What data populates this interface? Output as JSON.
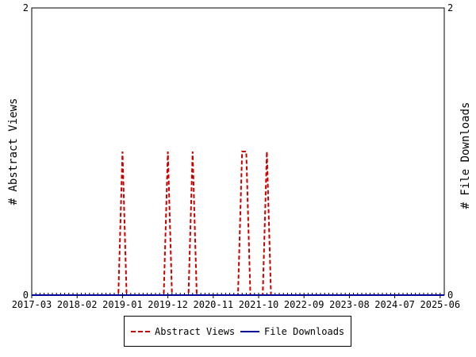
{
  "chart_data": {
    "type": "line",
    "x_tick_labels": [
      "2017-03",
      "2018-02",
      "2019-01",
      "2019-12",
      "2020-11",
      "2021-10",
      "2022-09",
      "2023-08",
      "2024-07",
      "2025-06"
    ],
    "y_left": {
      "label": "# Abstract Views",
      "ticks": [
        "0",
        "2"
      ],
      "ylim": [
        0,
        2
      ]
    },
    "y_right": {
      "label": "# File Downloads",
      "ticks": [
        "0",
        "2"
      ],
      "ylim": [
        0,
        2
      ]
    },
    "xlim": [
      "2017-03",
      "2025-07"
    ],
    "series": [
      {
        "name": "Abstract Views",
        "color": "#cc0000",
        "style": "dashed",
        "axis": "left",
        "points": [
          [
            "2017-03",
            0
          ],
          [
            "2018-12",
            0
          ],
          [
            "2019-01",
            1
          ],
          [
            "2019-02",
            0
          ],
          [
            "2019-11",
            0
          ],
          [
            "2019-12",
            1
          ],
          [
            "2020-01",
            0
          ],
          [
            "2020-05",
            0
          ],
          [
            "2020-06",
            1
          ],
          [
            "2020-07",
            0
          ],
          [
            "2021-05",
            0
          ],
          [
            "2021-06",
            1
          ],
          [
            "2021-07",
            1
          ],
          [
            "2021-08",
            0
          ],
          [
            "2021-11",
            0
          ],
          [
            "2021-12",
            1
          ],
          [
            "2022-01",
            0
          ],
          [
            "2025-07",
            0
          ]
        ]
      },
      {
        "name": "File Downloads",
        "color": "#000099",
        "style": "solid",
        "axis": "right",
        "points": [
          [
            "2017-03",
            0
          ],
          [
            "2025-07",
            0
          ]
        ]
      }
    ],
    "legend": {
      "position": "bottom"
    }
  }
}
